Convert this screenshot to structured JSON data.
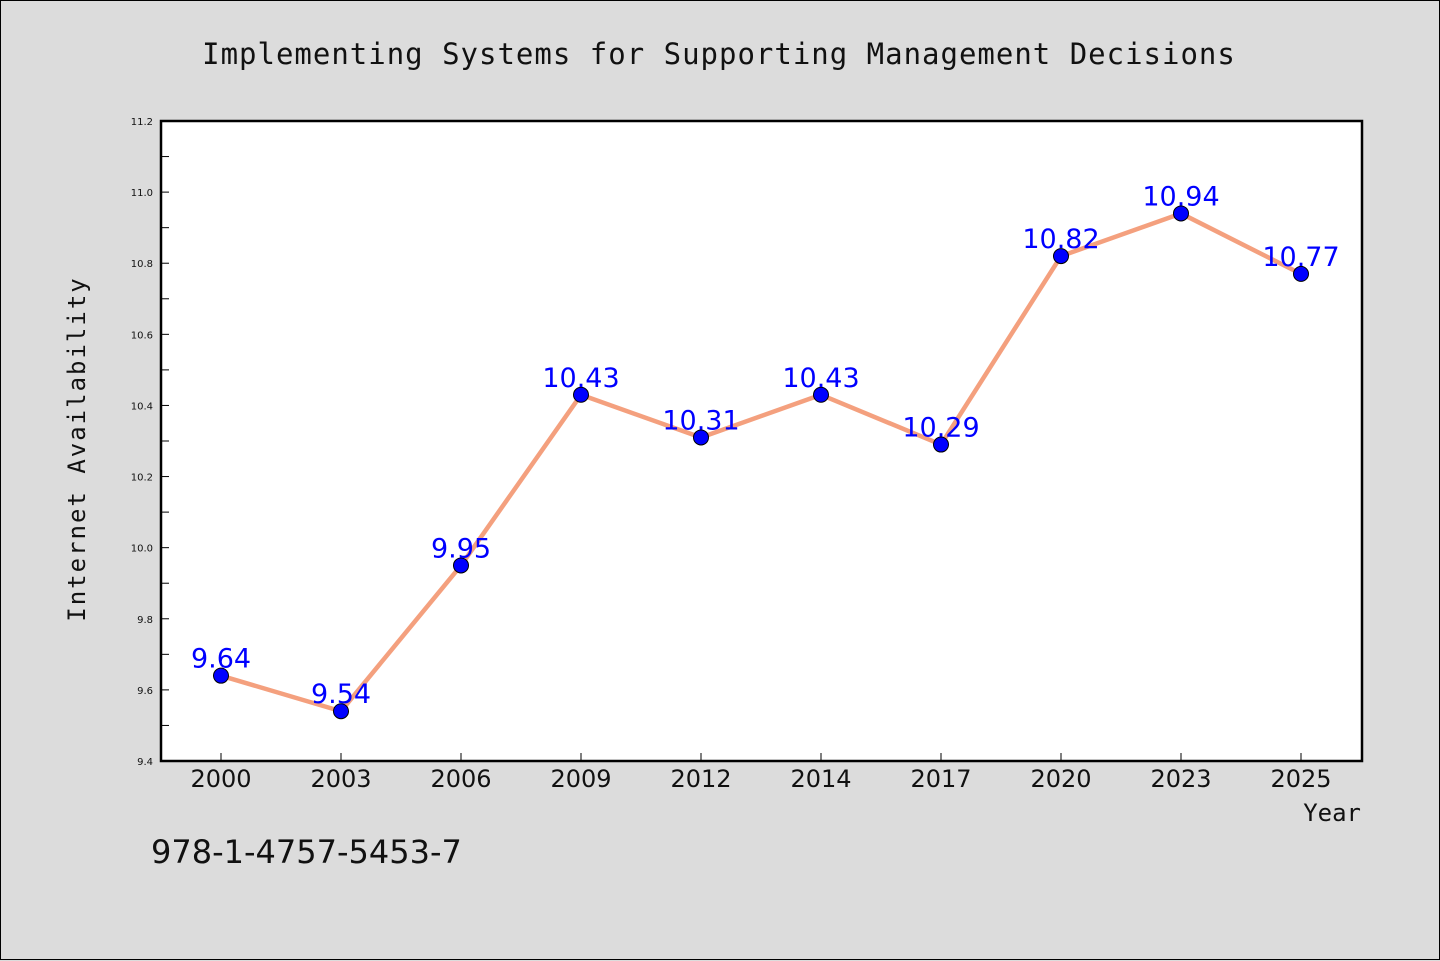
{
  "chart_data": {
    "type": "line",
    "title": "Implementing Systems for Supporting Management Decisions",
    "xlabel": "Year",
    "ylabel": "Internet Availability",
    "categories": [
      "2000",
      "2003",
      "2006",
      "2009",
      "2012",
      "2014",
      "2017",
      "2020",
      "2023",
      "2025"
    ],
    "values": [
      9.64,
      9.54,
      9.95,
      10.43,
      10.31,
      10.43,
      10.29,
      10.82,
      10.94,
      10.77
    ],
    "data_labels": [
      "9.64",
      "9.54",
      "9.95",
      "10.43",
      "10.31",
      "10.43",
      "10.29",
      "10.82",
      "10.94",
      "10.77"
    ],
    "ylim": [
      9.4,
      11.2
    ],
    "yticks": [
      "9.4",
      "9.6",
      "9.8",
      "10.0",
      "10.2",
      "10.4",
      "10.6",
      "10.8",
      "11.0",
      "11.2"
    ],
    "grid": false,
    "colors": {
      "line": "#f4a07e",
      "marker": "#0000ff",
      "data_label": "#0000ff",
      "background": "#dcdcdc",
      "plot_area": "#ffffff"
    }
  },
  "footer": {
    "isbn": "978-1-4757-5453-7"
  }
}
